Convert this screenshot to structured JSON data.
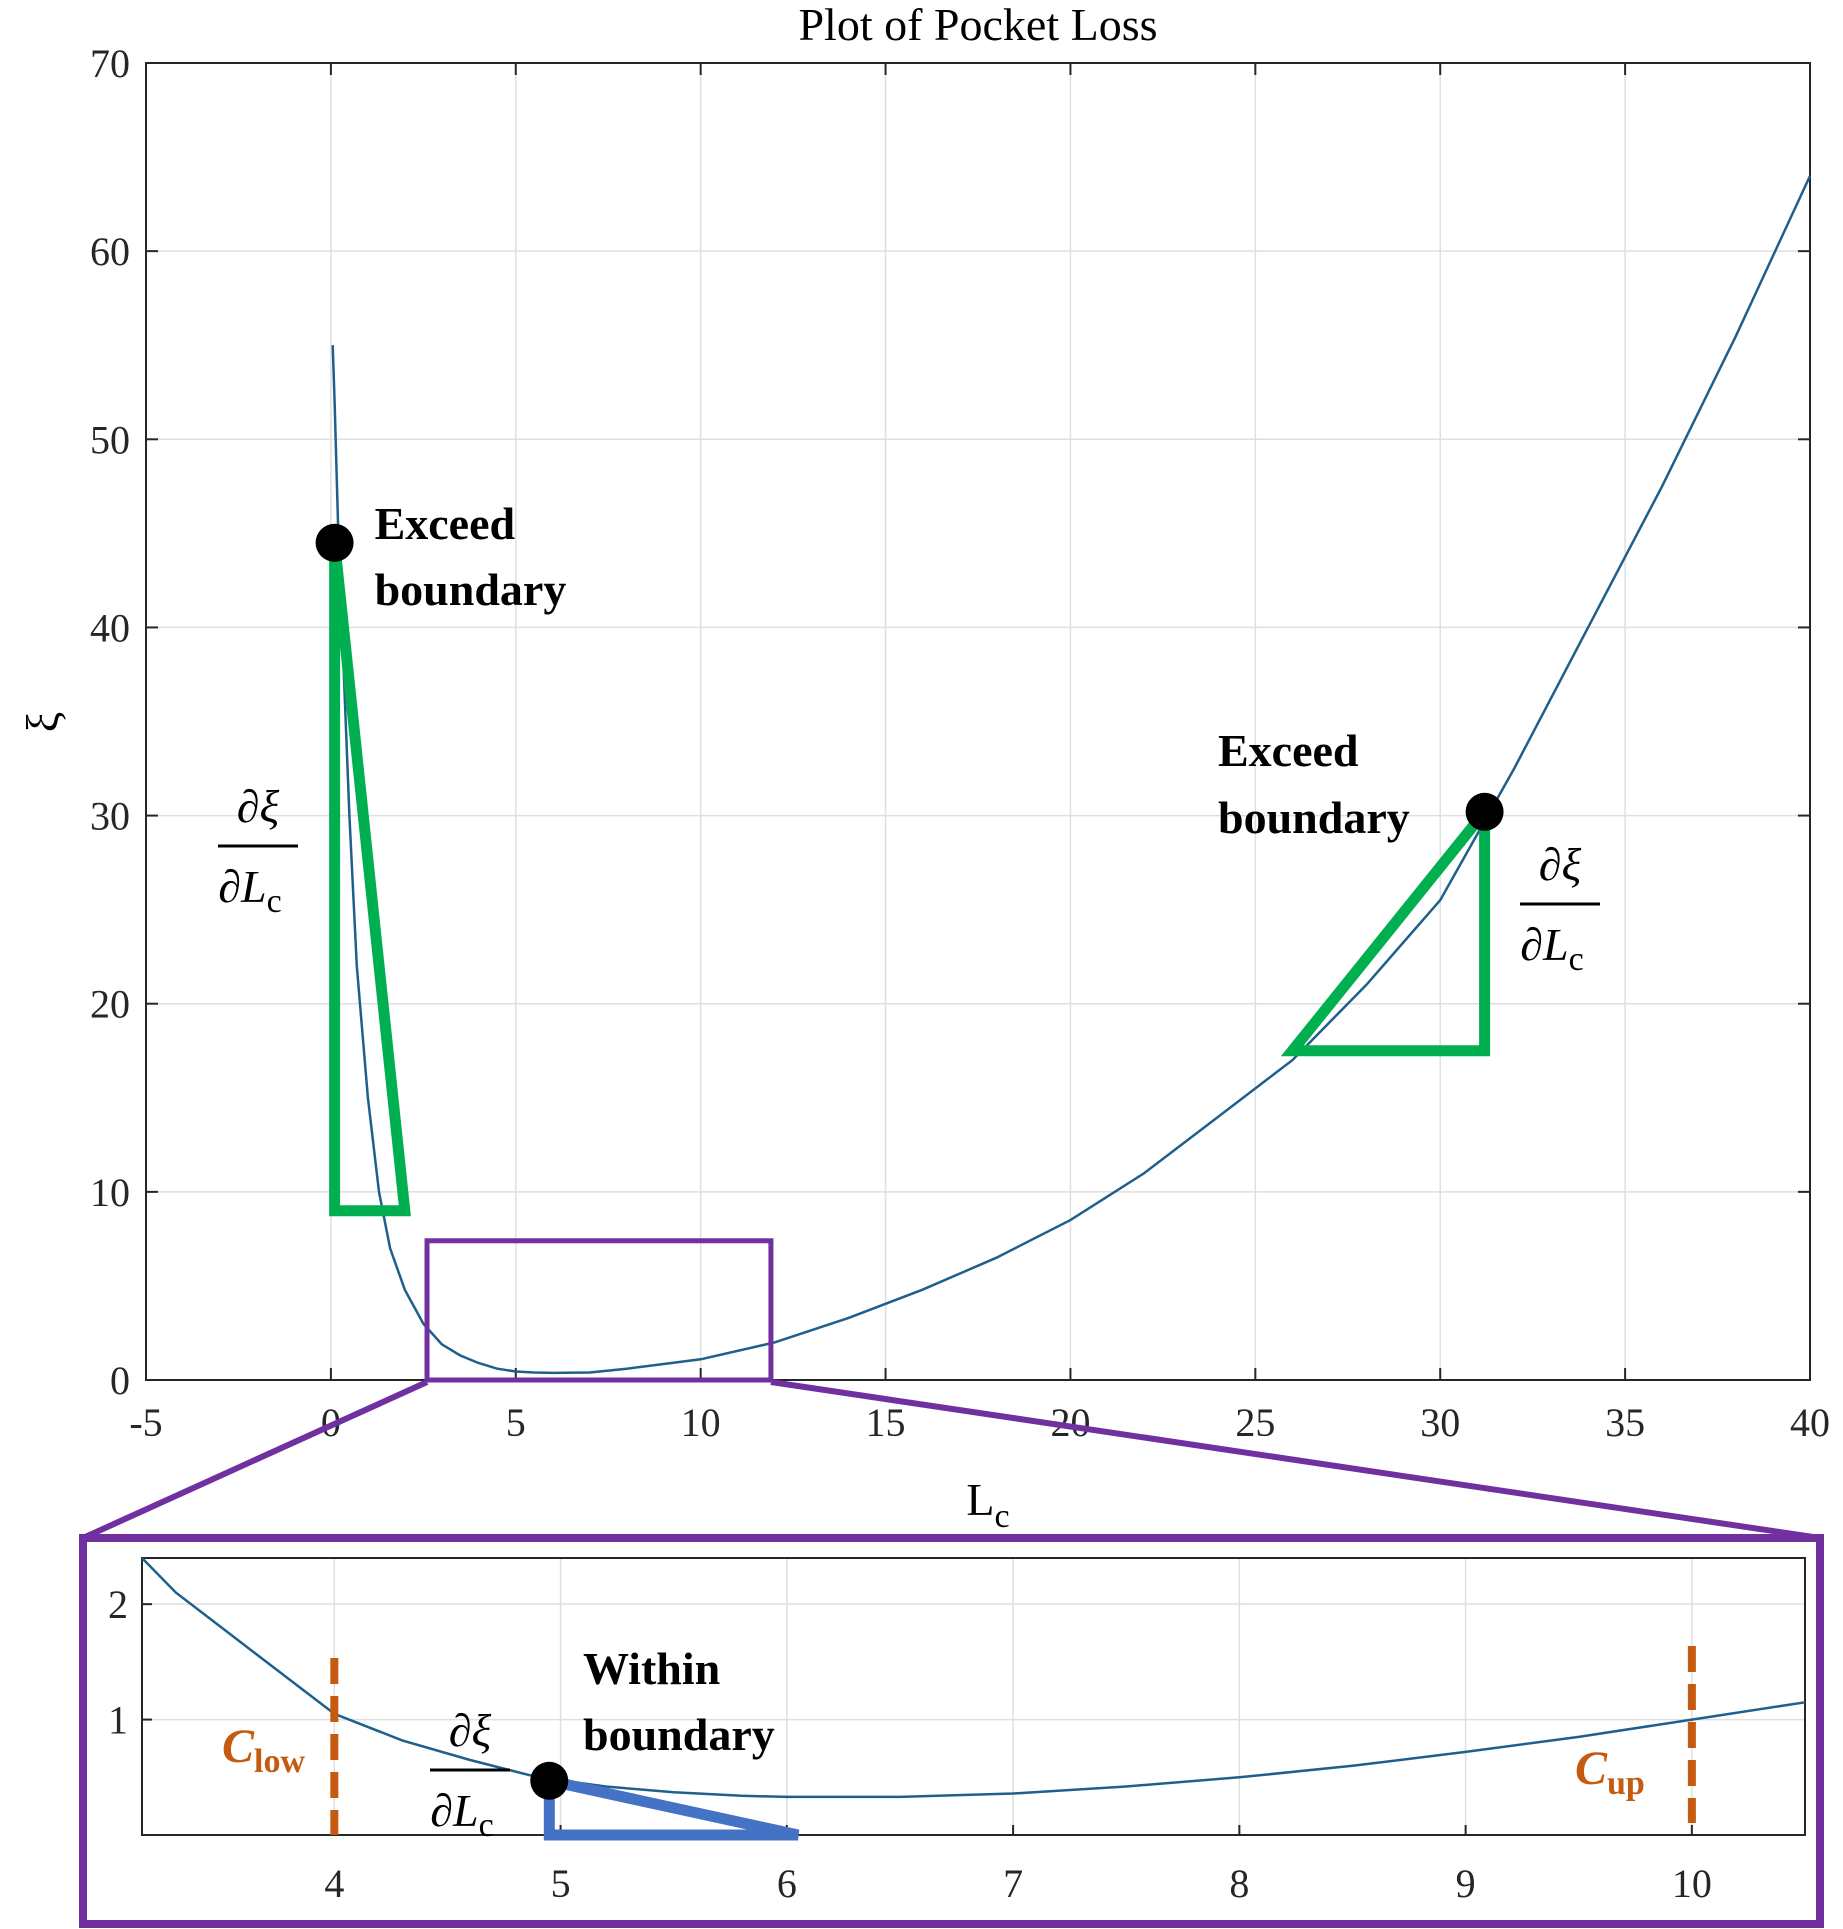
{
  "chart_data": [
    {
      "type": "line",
      "title": "Plot of Pocket Loss",
      "xlabel": "L_c",
      "ylabel": "ξ",
      "xlim": [
        -5,
        40
      ],
      "ylim": [
        0,
        70
      ],
      "xticks": [
        "-5",
        "0",
        "5",
        "10",
        "15",
        "20",
        "25",
        "30",
        "35",
        "40"
      ],
      "yticks": [
        "0",
        "10",
        "20",
        "30",
        "40",
        "50",
        "60",
        "70"
      ],
      "grid": true,
      "series": [
        {
          "color": "#1f5f8b",
          "x": [
            0.05,
            0.1,
            0.2,
            0.3,
            0.5,
            0.7,
            1.0,
            1.3,
            1.6,
            2.0,
            2.5,
            3.0,
            3.5,
            4.0,
            4.5,
            5.0,
            5.5,
            6.0,
            7.0,
            8.0,
            9.0,
            10.0,
            12.0,
            14.0,
            16.0,
            18.0,
            20.0,
            22.0,
            24.0,
            26.0,
            28.0,
            30.0,
            32.0,
            34.0,
            36.0,
            38.0,
            40.0
          ],
          "y": [
            55,
            52,
            45,
            40,
            30,
            22,
            15,
            10,
            7,
            4.8,
            3.0,
            1.9,
            1.3,
            0.9,
            0.6,
            0.45,
            0.4,
            0.38,
            0.4,
            0.6,
            0.85,
            1.1,
            2.0,
            3.3,
            4.8,
            6.5,
            8.5,
            11,
            14,
            17,
            21,
            25.5,
            32.5,
            40,
            47.5,
            55.5,
            64
          ]
        }
      ],
      "annotations": {
        "left_point": {
          "x": 0.1,
          "y": 44.5,
          "label_line1": "Exceed",
          "label_line2": "boundary"
        },
        "right_point": {
          "x": 31.2,
          "y": 30.2,
          "label_line1": "Exceed",
          "label_line2": "boundary"
        },
        "left_triangle": {
          "x": [
            0.1,
            0.1,
            2.0
          ],
          "y": [
            44.5,
            9.0,
            9.0
          ],
          "color": "#00b050"
        },
        "right_triangle": {
          "x": [
            31.2,
            31.2,
            26.0
          ],
          "y": [
            30.2,
            17.5,
            17.5
          ],
          "color": "#00b050"
        },
        "derivative_num": "∂ξ",
        "derivative_den": "∂L",
        "derivative_sub": "c",
        "zoom_box": {
          "x": [
            2.6,
            11.9
          ],
          "y": [
            0,
            7.4
          ],
          "color": "#7030a0"
        }
      }
    },
    {
      "type": "line",
      "title": "",
      "xlabel": "",
      "ylabel": "",
      "xlim": [
        3.15,
        10.5
      ],
      "ylim": [
        0,
        2.4
      ],
      "xticks": [
        "4",
        "5",
        "6",
        "7",
        "8",
        "9",
        "10"
      ],
      "yticks": [
        "1",
        "2"
      ],
      "grid": true,
      "series": [
        {
          "color": "#1f5f8b",
          "x": [
            3.15,
            3.3,
            3.5,
            3.7,
            4.0,
            4.3,
            4.6,
            4.9,
            5.2,
            5.5,
            5.8,
            6.0,
            6.5,
            7.0,
            7.5,
            8.0,
            8.5,
            9.0,
            9.5,
            10.0,
            10.5
          ],
          "y": [
            2.4,
            2.1,
            1.8,
            1.5,
            1.05,
            0.82,
            0.65,
            0.5,
            0.42,
            0.37,
            0.34,
            0.33,
            0.33,
            0.36,
            0.42,
            0.5,
            0.6,
            0.72,
            0.85,
            1.0,
            1.15
          ]
        }
      ],
      "annotations": {
        "point": {
          "x": 4.95,
          "y": 0.47,
          "label_line1": "Within",
          "label_line2": "boundary"
        },
        "triangle": {
          "x": [
            4.95,
            4.95,
            6.05
          ],
          "y": [
            0.47,
            0.0,
            0.0
          ],
          "color": "#4472c4"
        },
        "c_low": {
          "x": 4.0,
          "label": "C",
          "sub": "low",
          "color": "#c55a11"
        },
        "c_up": {
          "x": 10.0,
          "label": "C",
          "sub": "up",
          "color": "#c55a11"
        }
      }
    }
  ]
}
